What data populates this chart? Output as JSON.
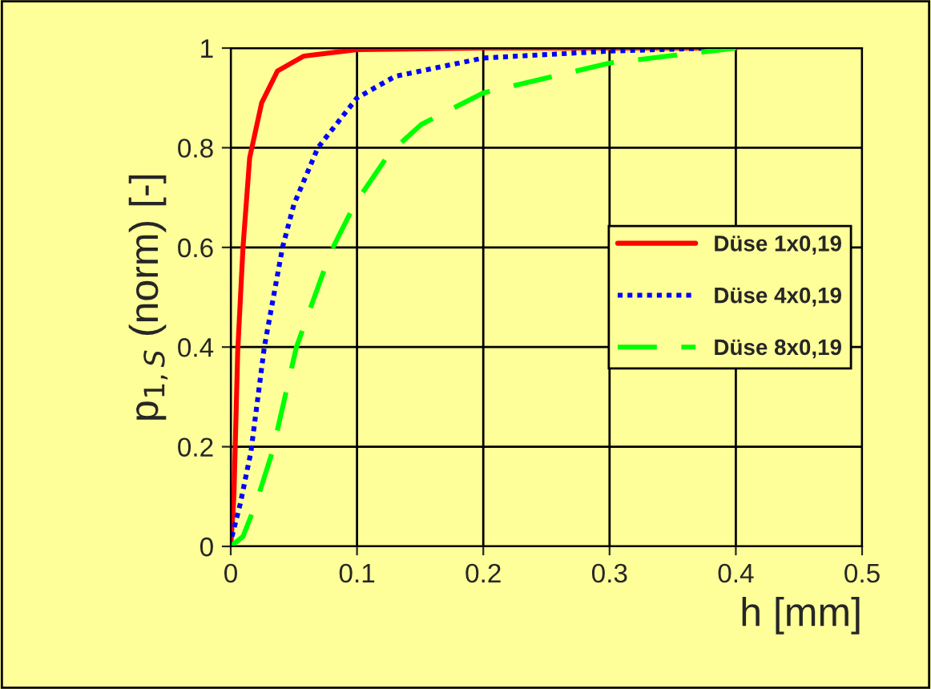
{
  "chart_data": {
    "type": "line",
    "xlabel": "h [mm]",
    "ylabel": "p$_{1,S}$ (norm) [-]",
    "xlim": [
      0,
      0.5
    ],
    "ylim": [
      0,
      1
    ],
    "xticks": [
      0,
      0.1,
      0.2,
      0.3,
      0.4,
      0.5
    ],
    "yticks": [
      0,
      0.2,
      0.4,
      0.6,
      0.8,
      1
    ],
    "grid": true,
    "legend": "right",
    "series": [
      {
        "name": "Düse 1x0,19",
        "color": "#ff0000",
        "line_style": "solid",
        "x": [
          0,
          0.0025,
          0.0055,
          0.0097,
          0.015,
          0.0245,
          0.037,
          0.058,
          0.1,
          0.2,
          0.4
        ],
        "values": [
          0,
          0.1,
          0.39,
          0.6,
          0.78,
          0.89,
          0.954,
          0.984,
          0.997,
          1,
          1
        ]
      },
      {
        "name": "Düse 4x0,19",
        "color": "#0000ff",
        "line_style": "dotted",
        "x": [
          0,
          0.001,
          0.0076,
          0.016,
          0.0266,
          0.041,
          0.05,
          0.069,
          0.1,
          0.13,
          0.2,
          0.3,
          0.38
        ],
        "values": [
          0,
          0.02,
          0.086,
          0.19,
          0.4,
          0.6,
          0.686,
          0.8,
          0.9,
          0.943,
          0.98,
          0.994,
          1
        ]
      },
      {
        "name": "Düse 8x0,19",
        "color": "#00ff00",
        "line_style": "dashed",
        "x": [
          0,
          0.0097,
          0.02,
          0.033,
          0.052,
          0.079,
          0.098,
          0.126,
          0.151,
          0.2,
          0.3,
          0.35,
          0.4
        ],
        "values": [
          0,
          0.02,
          0.086,
          0.19,
          0.4,
          0.59,
          0.686,
          0.79,
          0.847,
          0.91,
          0.97,
          0.985,
          1
        ]
      }
    ]
  }
}
